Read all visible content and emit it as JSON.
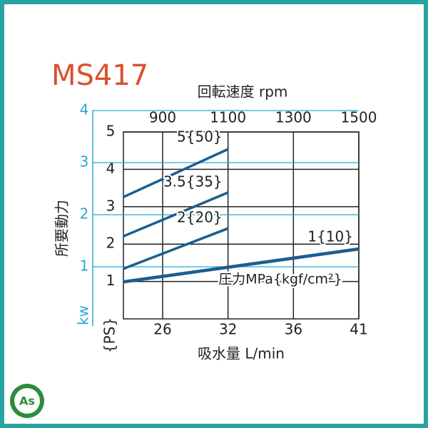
{
  "chart_data": {
    "type": "line",
    "title": "MS417",
    "x_label": "回転速度 rpm",
    "x2_label": "吸水量 L/min",
    "y_label": "所要動力",
    "y_unit": "{PS}",
    "y2_unit": "kw",
    "annotation": "圧力MPa{kgf/cm²}",
    "xlim": [
      780,
      1500
    ],
    "xticks": [
      900,
      1100,
      1300,
      1500
    ],
    "x2ticks": [
      26,
      32,
      36,
      41
    ],
    "ylim": [
      0,
      5
    ],
    "yticks": [
      1,
      2,
      3,
      4,
      5
    ],
    "y2lim": [
      0,
      4
    ],
    "y2ticks": [
      1,
      2,
      3,
      4
    ],
    "grid": true,
    "series": [
      {
        "name": "5{50}",
        "color": "#1b5e8f",
        "x": [
          780,
          1100
        ],
        "values": [
          3.26,
          4.54
        ]
      },
      {
        "name": "3.5{35}",
        "color": "#1b5e8f",
        "x": [
          780,
          1100
        ],
        "values": [
          2.21,
          3.38
        ]
      },
      {
        "name": "2{20}",
        "color": "#1b5e8f",
        "x": [
          780,
          1100
        ],
        "values": [
          1.34,
          2.42
        ]
      },
      {
        "name": "1{10}",
        "color": "#1b5e8f",
        "x": [
          780,
          1500
        ],
        "values": [
          0.99,
          1.87
        ]
      }
    ]
  },
  "logo": "As"
}
